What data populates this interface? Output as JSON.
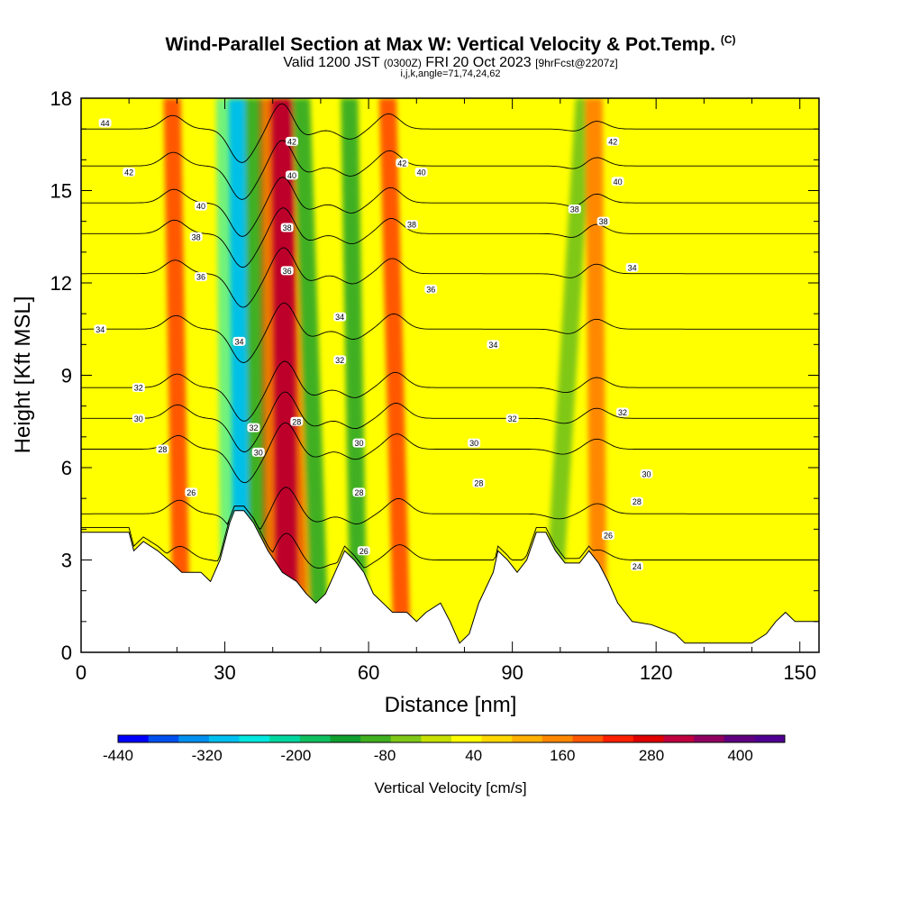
{
  "title": {
    "main": "Wind-Parallel Section at Max W: Vertical Velocity & Pot.Temp.",
    "copyright": "(C)",
    "valid_prefix": "Valid 1200 JST",
    "valid_utc": "(0300Z)",
    "valid_date": "FRI 20 Oct 2023",
    "forecast": "[9hrFcst@2207z]",
    "indices": "i,j,k,angle=71,74,24,62"
  },
  "chart_data": {
    "type": "heatmap",
    "xlabel": "Distance [nm]",
    "ylabel": "Height [Kft MSL]",
    "xlim": [
      0,
      154
    ],
    "ylim": [
      0,
      18
    ],
    "x_ticks": [
      0,
      30,
      60,
      90,
      120,
      150
    ],
    "y_ticks": [
      0,
      3,
      6,
      9,
      12,
      15,
      18
    ],
    "colorbar": {
      "title": "Vertical Velocity [cm/s]",
      "range": [
        -440,
        460
      ],
      "step": 40,
      "tick_labels": [
        "-440",
        "-320",
        "-200",
        "-80",
        "40",
        "160",
        "280",
        "400"
      ],
      "tick_values": [
        -440,
        -320,
        -200,
        -80,
        40,
        160,
        280,
        400
      ],
      "colors": [
        "#0000ff",
        "#0050f0",
        "#0090f0",
        "#00c0f0",
        "#00e8e0",
        "#00d8a0",
        "#10c060",
        "#10a030",
        "#40b020",
        "#80c818",
        "#c8e000",
        "#ffff00",
        "#ffd800",
        "#ffb000",
        "#ff8800",
        "#ff5800",
        "#ff2000",
        "#e00000",
        "#c00040",
        "#900060",
        "#600080",
        "#500090"
      ]
    },
    "velocity_bands": [
      {
        "x_bottom": 34,
        "x_top": 33,
        "value": -340
      },
      {
        "x_bottom": 37,
        "x_top": 36,
        "value": -120
      },
      {
        "x_bottom": 43,
        "x_top": 42,
        "value": 320
      },
      {
        "x_bottom": 50,
        "x_top": 46,
        "value": -100
      },
      {
        "x_bottom": 58,
        "x_top": 56,
        "value": -120
      },
      {
        "x_bottom": 21,
        "x_top": 19,
        "value": 160
      },
      {
        "x_bottom": 67,
        "x_top": 64,
        "value": 180
      },
      {
        "x_bottom": 98,
        "x_top": 105,
        "value": -60
      },
      {
        "x_bottom": 108,
        "x_top": 107,
        "value": 120
      }
    ],
    "theta_contours": [
      {
        "label": "24",
        "height_kft": 3.0
      },
      {
        "label": "26",
        "height_kft": 4.5
      },
      {
        "label": "28",
        "height_kft": 6.6
      },
      {
        "label": "30",
        "height_kft": 7.6
      },
      {
        "label": "32",
        "height_kft": 8.6
      },
      {
        "label": "34",
        "height_kft": 10.5
      },
      {
        "label": "36",
        "height_kft": 12.3
      },
      {
        "label": "38",
        "height_kft": 13.6
      },
      {
        "label": "40",
        "height_kft": 14.6
      },
      {
        "label": "42",
        "height_kft": 15.8
      },
      {
        "label": "44",
        "height_kft": 17.0
      }
    ],
    "contour_labels": [
      {
        "text": "44",
        "x": 5,
        "y": 17.2
      },
      {
        "text": "42",
        "x": 10,
        "y": 15.6
      },
      {
        "text": "40",
        "x": 25,
        "y": 14.5
      },
      {
        "text": "38",
        "x": 24,
        "y": 13.5
      },
      {
        "text": "36",
        "x": 25,
        "y": 12.2
      },
      {
        "text": "34",
        "x": 4,
        "y": 10.5
      },
      {
        "text": "32",
        "x": 12,
        "y": 8.6
      },
      {
        "text": "30",
        "x": 12,
        "y": 7.6
      },
      {
        "text": "28",
        "x": 17,
        "y": 6.6
      },
      {
        "text": "26",
        "x": 23,
        "y": 5.2
      },
      {
        "text": "42",
        "x": 44,
        "y": 16.6
      },
      {
        "text": "40",
        "x": 44,
        "y": 15.5
      },
      {
        "text": "38",
        "x": 43,
        "y": 13.8
      },
      {
        "text": "36",
        "x": 43,
        "y": 12.4
      },
      {
        "text": "34",
        "x": 33,
        "y": 10.1
      },
      {
        "text": "32",
        "x": 36,
        "y": 7.3
      },
      {
        "text": "30",
        "x": 37,
        "y": 6.5
      },
      {
        "text": "28",
        "x": 45,
        "y": 7.5
      },
      {
        "text": "34",
        "x": 54,
        "y": 10.9
      },
      {
        "text": "32",
        "x": 54,
        "y": 9.5
      },
      {
        "text": "30",
        "x": 58,
        "y": 6.8
      },
      {
        "text": "28",
        "x": 58,
        "y": 5.2
      },
      {
        "text": "26",
        "x": 59,
        "y": 3.3
      },
      {
        "text": "42",
        "x": 67,
        "y": 15.9
      },
      {
        "text": "40",
        "x": 71,
        "y": 15.6
      },
      {
        "text": "38",
        "x": 69,
        "y": 13.9
      },
      {
        "text": "36",
        "x": 73,
        "y": 11.8
      },
      {
        "text": "34",
        "x": 86,
        "y": 10.0
      },
      {
        "text": "32",
        "x": 90,
        "y": 7.6
      },
      {
        "text": "30",
        "x": 82,
        "y": 6.8
      },
      {
        "text": "28",
        "x": 83,
        "y": 5.5
      },
      {
        "text": "42",
        "x": 111,
        "y": 16.6
      },
      {
        "text": "40",
        "x": 112,
        "y": 15.3
      },
      {
        "text": "38",
        "x": 103,
        "y": 14.4
      },
      {
        "text": "38",
        "x": 109,
        "y": 14.0
      },
      {
        "text": "34",
        "x": 115,
        "y": 12.5
      },
      {
        "text": "32",
        "x": 113,
        "y": 7.8
      },
      {
        "text": "30",
        "x": 118,
        "y": 5.8
      },
      {
        "text": "28",
        "x": 116,
        "y": 4.9
      },
      {
        "text": "26",
        "x": 110,
        "y": 3.8
      },
      {
        "text": "24",
        "x": 116,
        "y": 2.8
      }
    ],
    "terrain": [
      [
        0,
        3.9
      ],
      [
        10,
        3.9
      ],
      [
        11,
        3.3
      ],
      [
        13,
        3.6
      ],
      [
        16,
        3.3
      ],
      [
        19,
        2.9
      ],
      [
        21,
        2.6
      ],
      [
        25,
        2.6
      ],
      [
        27,
        2.3
      ],
      [
        29,
        3.0
      ],
      [
        31,
        4.2
      ],
      [
        32,
        4.6
      ],
      [
        34,
        4.6
      ],
      [
        36,
        4.2
      ],
      [
        39,
        3.3
      ],
      [
        42,
        2.6
      ],
      [
        45,
        2.3
      ],
      [
        47,
        1.9
      ],
      [
        49,
        1.6
      ],
      [
        51,
        1.9
      ],
      [
        53,
        2.6
      ],
      [
        55,
        3.3
      ],
      [
        57,
        3.0
      ],
      [
        59,
        2.6
      ],
      [
        61,
        1.9
      ],
      [
        63,
        1.6
      ],
      [
        65,
        1.3
      ],
      [
        68,
        1.3
      ],
      [
        70,
        1.0
      ],
      [
        72,
        1.3
      ],
      [
        75,
        1.6
      ],
      [
        77,
        1.0
      ],
      [
        79,
        0.3
      ],
      [
        81,
        0.6
      ],
      [
        83,
        1.6
      ],
      [
        86,
        2.6
      ],
      [
        87,
        3.3
      ],
      [
        89,
        3.0
      ],
      [
        91,
        2.6
      ],
      [
        93,
        3.0
      ],
      [
        95,
        3.9
      ],
      [
        97,
        3.9
      ],
      [
        99,
        3.3
      ],
      [
        101,
        2.9
      ],
      [
        104,
        2.9
      ],
      [
        106,
        3.3
      ],
      [
        108,
        2.9
      ],
      [
        110,
        2.3
      ],
      [
        112,
        1.6
      ],
      [
        115,
        1.0
      ],
      [
        119,
        0.9
      ],
      [
        124,
        0.6
      ],
      [
        126,
        0.3
      ],
      [
        140,
        0.3
      ],
      [
        143,
        0.6
      ],
      [
        145,
        1.0
      ],
      [
        147,
        1.3
      ],
      [
        149,
        1.0
      ],
      [
        154,
        1.0
      ]
    ]
  }
}
